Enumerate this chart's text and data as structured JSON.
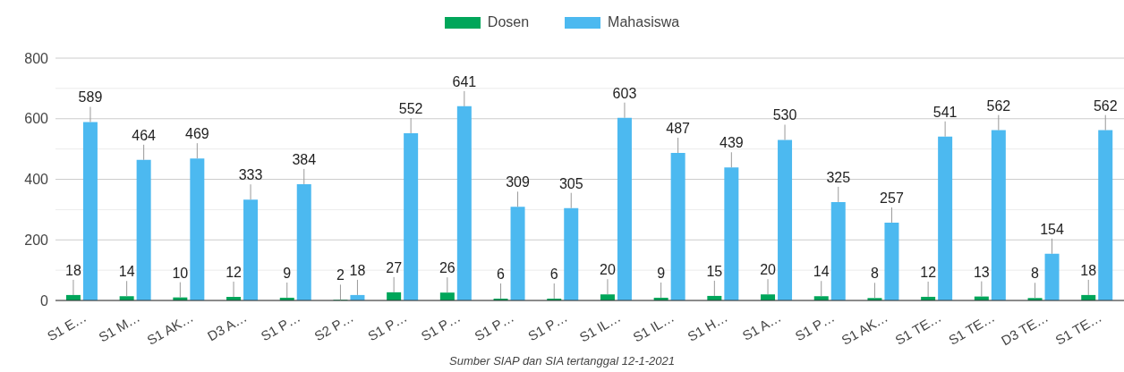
{
  "chart_data": {
    "type": "bar",
    "categories": [
      "S1 E…",
      "S1 M…",
      "S1 AK…",
      "D3 A…",
      "S1 P…",
      "S2 P…",
      "S1 P…",
      "S1 P…",
      "S1 P…",
      "S1 P…",
      "S1 IL…",
      "S1 IL…",
      "S1 H…",
      "S1 A…",
      "S1 P…",
      "S1 AK…",
      "S1 TE…",
      "S1 TE…",
      "D3 TE…",
      "S1 TE…"
    ],
    "series": [
      {
        "name": "Dosen",
        "color": "#00a65a",
        "values": [
          18,
          14,
          10,
          12,
          9,
          2,
          27,
          26,
          6,
          6,
          20,
          9,
          15,
          20,
          14,
          8,
          12,
          13,
          8,
          18
        ]
      },
      {
        "name": "Mahasiswa",
        "color": "#4cb9f0",
        "values": [
          589,
          464,
          469,
          333,
          384,
          18,
          552,
          641,
          309,
          305,
          603,
          487,
          439,
          530,
          325,
          257,
          541,
          562,
          154,
          562
        ]
      }
    ],
    "ylim": [
      0,
      800
    ],
    "yticks": [
      0,
      {
        "value": 100,
        "label": null
      },
      200,
      {
        "value": 300,
        "label": null
      },
      400,
      {
        "value": 500,
        "label": null
      },
      600,
      {
        "value": 700,
        "label": null
      },
      800
    ],
    "grid": "y",
    "legend": "top",
    "data_labels": true,
    "annotations": [
      "Sumber SIAP dan SIA tertanggal 12-1-2021"
    ]
  }
}
